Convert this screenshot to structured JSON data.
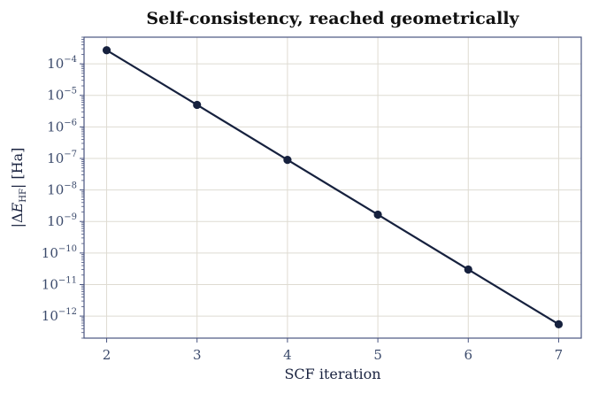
{
  "chart_data": {
    "type": "line",
    "title": "Self-consistency, reached geometrically",
    "xlabel": "SCF iteration",
    "ylabel": "|ΔE_HF|  [Ha]",
    "ylabel_parts": {
      "pre": "|Δ",
      "var": "E",
      "sub": "HF",
      "post": "|  [Ha]"
    },
    "yscale": "log",
    "xlim": [
      1.75,
      7.25
    ],
    "ylim": [
      2e-13,
      0.0007
    ],
    "x_ticks": [
      2,
      3,
      4,
      5,
      6,
      7
    ],
    "y_ticks": [
      {
        "base": "10",
        "exp": "−4",
        "value": 0.0001
      },
      {
        "base": "10",
        "exp": "−5",
        "value": 1e-05
      },
      {
        "base": "10",
        "exp": "−6",
        "value": 1e-06
      },
      {
        "base": "10",
        "exp": "−7",
        "value": 1e-07
      },
      {
        "base": "10",
        "exp": "−8",
        "value": 1e-08
      },
      {
        "base": "10",
        "exp": "−9",
        "value": 1e-09
      },
      {
        "base": "10",
        "exp": "−10",
        "value": 1e-10
      },
      {
        "base": "10",
        "exp": "−11",
        "value": 1e-11
      },
      {
        "base": "10",
        "exp": "−12",
        "value": 1e-12
      }
    ],
    "grid": true,
    "series": [
      {
        "x": [
          2,
          3,
          4,
          5,
          6,
          7
        ],
        "values": [
          0.00027,
          5e-06,
          9e-08,
          1.65e-09,
          3e-11,
          5.5e-13
        ]
      }
    ],
    "colors": {
      "line": "#16213e",
      "marker": "#16213e",
      "grid": "#dedbd2",
      "spine": "#4a5580",
      "tick_text": "#3b4a6b"
    }
  }
}
